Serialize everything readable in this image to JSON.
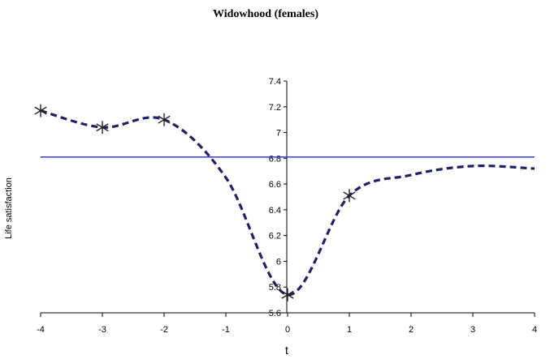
{
  "chart_data": {
    "type": "line",
    "title": "Widowhood (females)",
    "xlabel": "t",
    "ylabel": "Life satisfaction",
    "xlim": [
      -4,
      4
    ],
    "ylim": [
      5.6,
      7.4
    ],
    "x_ticks": [
      "-4",
      "-3",
      "-2",
      "-1",
      "0",
      "1",
      "2",
      "3",
      "4"
    ],
    "y_ticks": [
      "5.6",
      "5.8",
      "6",
      "6.2",
      "6.4",
      "6.6",
      "6.8",
      "7",
      "7.2",
      "7.4"
    ],
    "grid": false,
    "legend": "none",
    "series": [
      {
        "style": "dashed",
        "color": "#1f1f6b",
        "x": [
          -4,
          -3,
          -2,
          -1,
          0,
          1,
          2,
          3,
          4
        ],
        "y": [
          7.17,
          7.04,
          7.1,
          6.65,
          5.74,
          6.51,
          6.67,
          6.74,
          6.72
        ],
        "markers_at": [
          -4,
          -3,
          -2,
          0,
          1
        ]
      }
    ],
    "reference_line": {
      "y": 6.81,
      "color": "#3a3adc"
    }
  }
}
